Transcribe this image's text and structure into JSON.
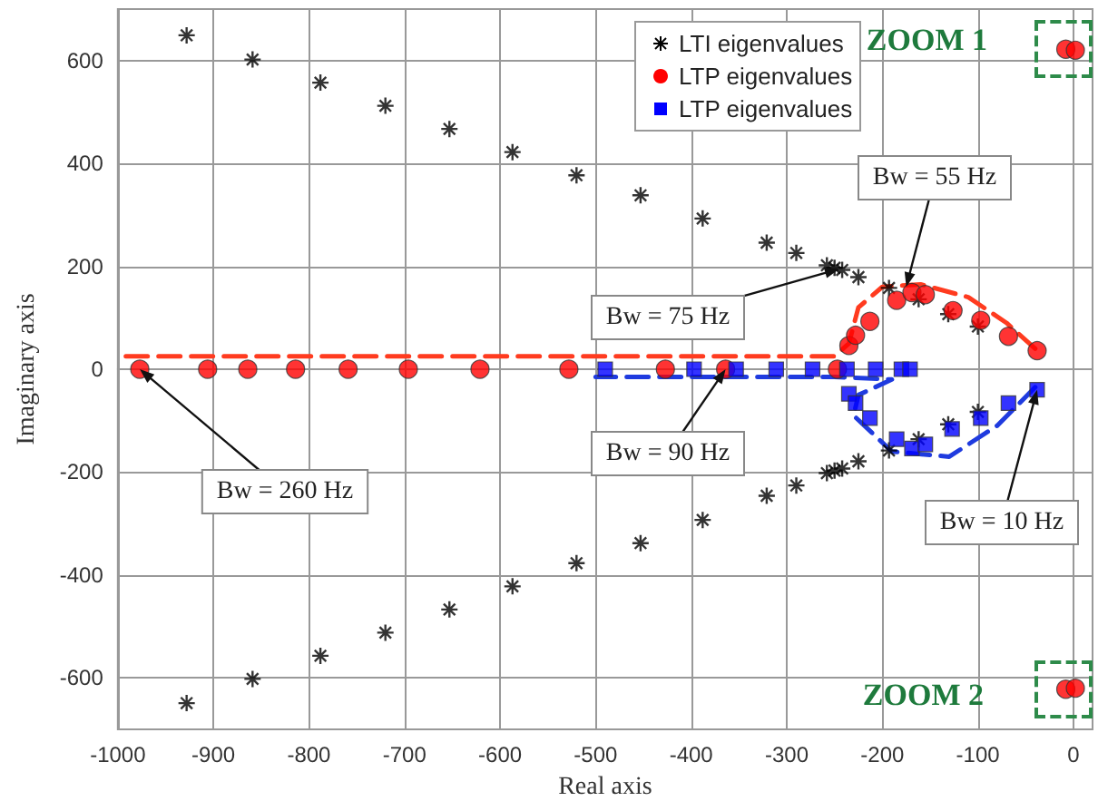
{
  "chart_data": {
    "type": "scatter",
    "xlabel": "Real axis",
    "ylabel": "Imaginary axis",
    "xlim": [
      -1000,
      20
    ],
    "ylim": [
      -700,
      700
    ],
    "xticks": [
      -1000,
      -900,
      -800,
      -700,
      -600,
      -500,
      -400,
      -300,
      -200,
      -100,
      0
    ],
    "yticks": [
      -600,
      -400,
      -200,
      0,
      200,
      400,
      600
    ],
    "grid": true,
    "legend": "top right",
    "series": [
      {
        "name": "LTI eigenvalues",
        "color": "#000000",
        "marker": "cross",
        "x": [
          -928,
          -859,
          -788,
          -720,
          -653,
          -587,
          -520,
          -453,
          -388,
          -321,
          -290,
          -258,
          -250,
          -242,
          -225,
          -193,
          -162,
          -131,
          -100,
          -928,
          -859,
          -788,
          -720,
          -653,
          -587,
          -520,
          -453,
          -388,
          -321,
          -290,
          -258,
          -250,
          -242,
          -225,
          -193,
          -162,
          -131,
          -100
        ],
        "values": [
          649,
          602,
          557,
          512,
          467,
          422,
          377,
          338,
          293,
          246,
          226,
          202,
          197,
          193,
          179,
          158,
          136,
          107,
          83,
          -649,
          -602,
          -557,
          -512,
          -467,
          -422,
          -377,
          -338,
          -293,
          -246,
          -226,
          -202,
          -197,
          -193,
          -179,
          -158,
          -136,
          -107,
          -83
        ]
      },
      {
        "name": "LTP eigenvalues",
        "color": "#ff0000",
        "marker": "circle",
        "x": [
          -977,
          -906,
          -864,
          -814,
          -759,
          -696,
          -621,
          -528,
          -427,
          -364,
          -247,
          -235,
          -228,
          -213,
          -185,
          -169,
          -155,
          -126,
          -97,
          -68,
          -38,
          -8,
          2,
          -8,
          2
        ],
        "values": [
          0,
          0,
          0,
          0,
          0,
          0,
          0,
          0,
          0,
          0,
          0,
          46,
          66,
          93,
          134,
          149,
          145,
          114,
          95,
          64,
          36,
          622,
          620,
          -622,
          -620
        ]
      },
      {
        "name": "LTP eigenvalues",
        "color": "#0000ff",
        "marker": "square",
        "x": [
          -490,
          -397,
          -353,
          -311,
          -273,
          -237,
          -207,
          -180,
          -171,
          -235,
          -228,
          -213,
          -185,
          -169,
          -155,
          -127,
          -97,
          -68,
          -38
        ],
        "values": [
          0,
          0,
          0,
          0,
          0,
          0,
          0,
          0,
          0,
          -48,
          -66,
          -95,
          -136,
          -154,
          -146,
          -116,
          -95,
          -66,
          -40
        ]
      },
      {
        "type": "line",
        "color": "#ff3b1f",
        "marker": "none",
        "line_style": "dashed",
        "x": [
          -40,
          -70,
          -110,
          -160,
          -200,
          -225,
          -235,
          -250,
          -500,
          -1000
        ],
        "values": [
          40,
          90,
          140,
          165,
          160,
          120,
          50,
          25,
          25,
          25
        ]
      },
      {
        "type": "line",
        "color": "#1f3bdf",
        "marker": "none",
        "line_style": "dashed",
        "x": [
          -40,
          -80,
          -130,
          -190,
          -230,
          -225,
          -190,
          -250,
          -500
        ],
        "values": [
          -35,
          -110,
          -170,
          -160,
          -90,
          -50,
          -20,
          -15,
          -15
        ]
      }
    ],
    "annotations": [
      {
        "text": "Bw = 55 Hz",
        "x": -175,
        "y": 160
      },
      {
        "text": "Bw = 75 Hz",
        "x": -245,
        "y": 195
      },
      {
        "text": "Bw = 260 Hz",
        "x": -977,
        "y": 0
      },
      {
        "text": "Bw = 90 Hz",
        "x": -364,
        "y": 0
      },
      {
        "text": "Bw = 10 Hz",
        "x": -38,
        "y": -40
      },
      {
        "text": "ZOOM 1",
        "x": -3,
        "y": 621
      },
      {
        "text": "ZOOM 2",
        "x": -3,
        "y": -621
      }
    ]
  }
}
